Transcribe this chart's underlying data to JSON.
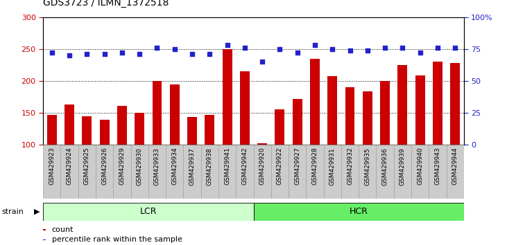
{
  "title": "GDS3723 / ILMN_1372518",
  "categories": [
    "GSM429923",
    "GSM429924",
    "GSM429925",
    "GSM429926",
    "GSM429929",
    "GSM429930",
    "GSM429933",
    "GSM429934",
    "GSM429937",
    "GSM429938",
    "GSM429941",
    "GSM429942",
    "GSM429920",
    "GSM429922",
    "GSM429927",
    "GSM429928",
    "GSM429931",
    "GSM429932",
    "GSM429935",
    "GSM429936",
    "GSM429939",
    "GSM429940",
    "GSM429943",
    "GSM429944"
  ],
  "bar_values": [
    147,
    163,
    144,
    139,
    161,
    150,
    200,
    194,
    143,
    147,
    250,
    215,
    102,
    155,
    172,
    235,
    207,
    190,
    184,
    200,
    225,
    209,
    230,
    228
  ],
  "dot_values": [
    72,
    70,
    71,
    71,
    72,
    71,
    76,
    75,
    71,
    71,
    78,
    76,
    65,
    75,
    72,
    78,
    75,
    74,
    74,
    76,
    76,
    72,
    76,
    76
  ],
  "lcr_count": 12,
  "hcr_count": 12,
  "ylim_left": [
    100,
    300
  ],
  "ylim_right": [
    0,
    100
  ],
  "bar_color": "#cc0000",
  "dot_color": "#2222cc",
  "tick_color_left": "#cc0000",
  "tick_color_right": "#2222cc",
  "lcr_color": "#ccffcc",
  "hcr_color": "#66ee66",
  "strain_band_color": "#444444",
  "xtick_bg_color": "#cccccc",
  "xtick_border_color": "#999999",
  "legend_count_label": "count",
  "legend_pct_label": "percentile rank within the sample",
  "grid_yticks": [
    150,
    200,
    250
  ],
  "title_fontsize": 10,
  "axis_fontsize": 8,
  "xtick_fontsize": 6.5,
  "bar_width": 0.55
}
